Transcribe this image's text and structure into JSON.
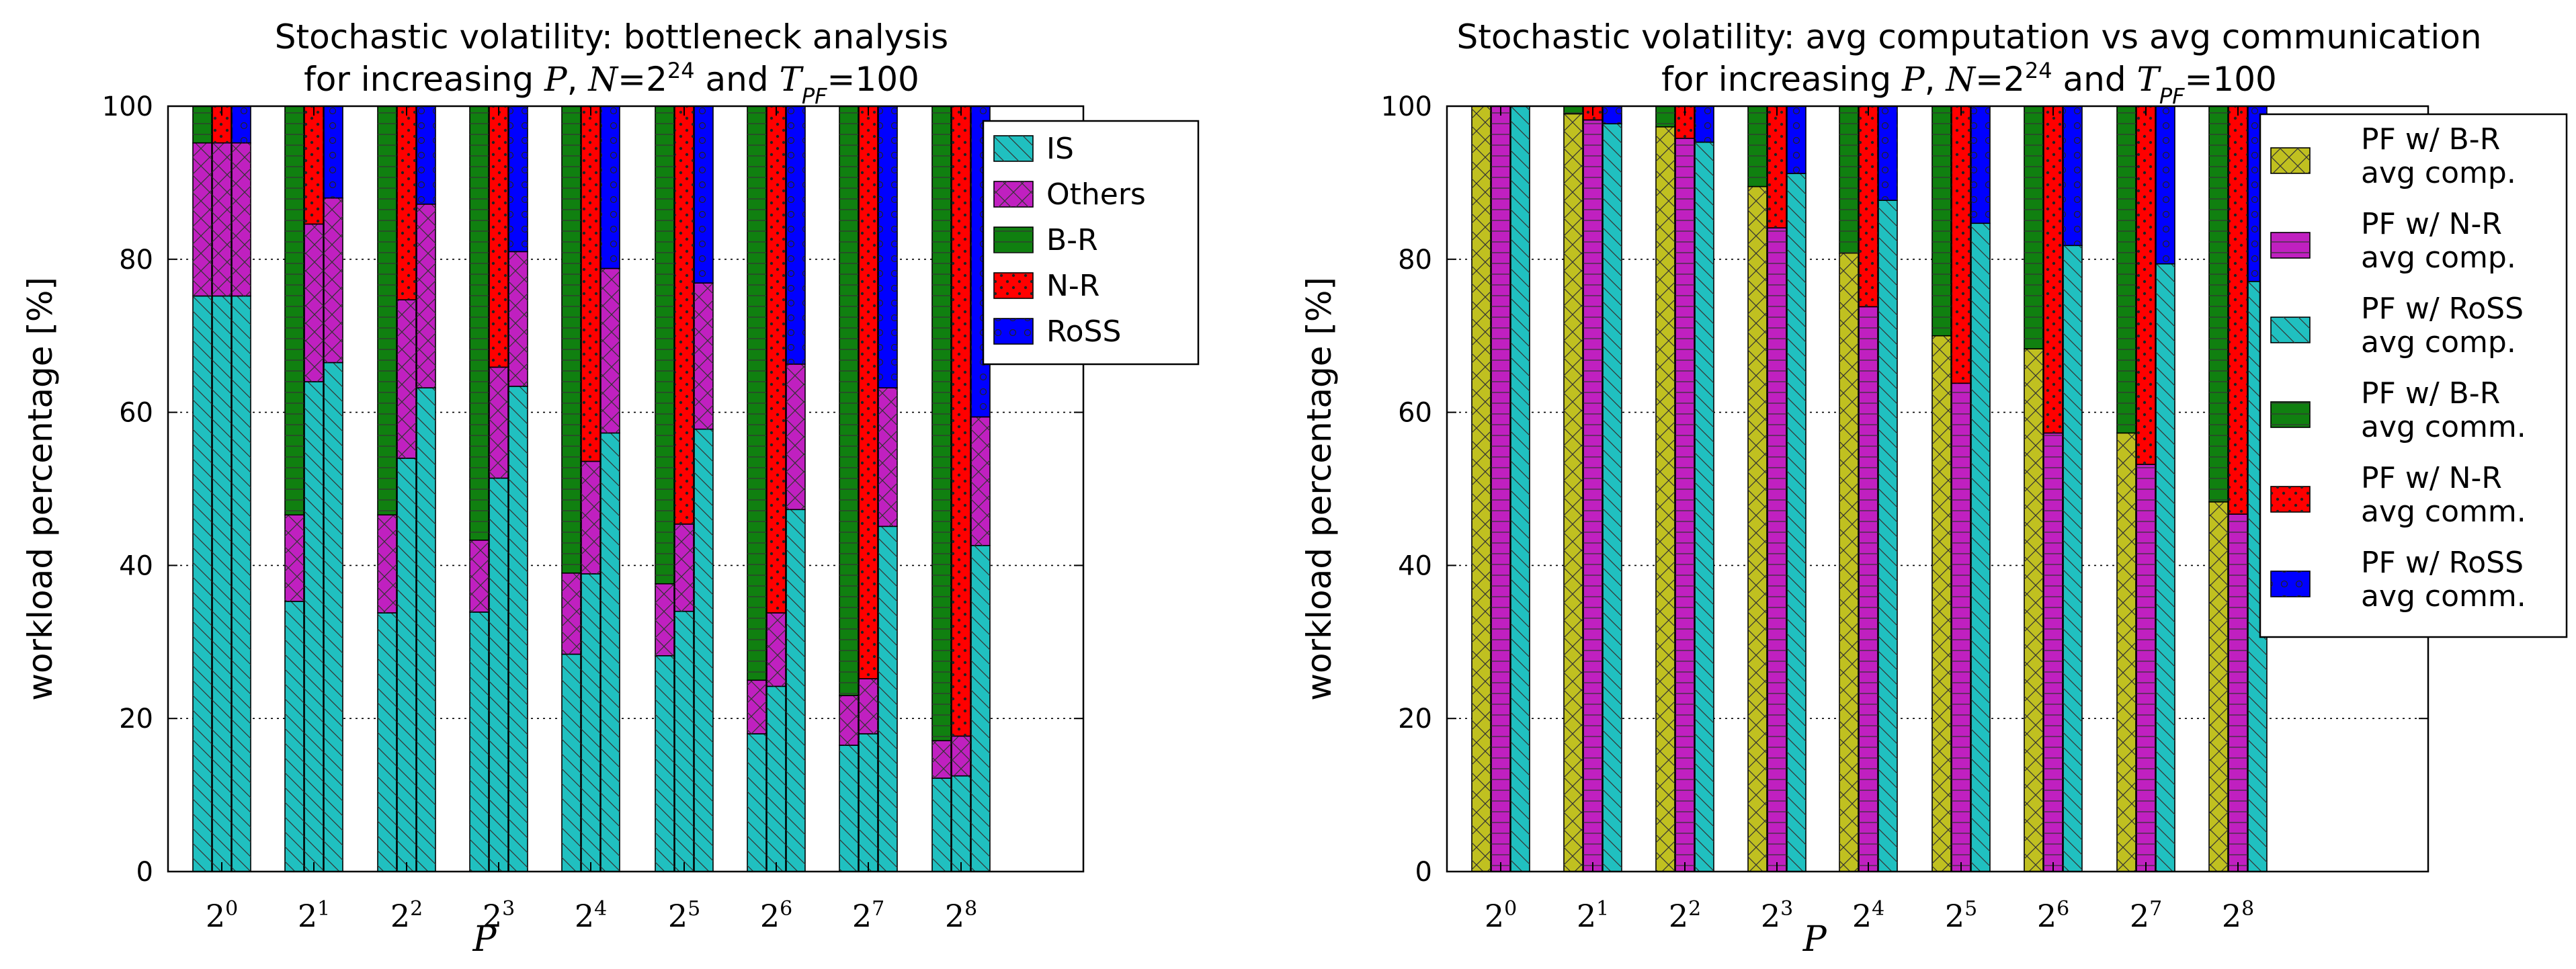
{
  "colors": {
    "IS": "#20c0c0",
    "Others": "#c020c0",
    "B-R": "#108010",
    "N-R": "#ff0000",
    "RoSS": "#0000ff",
    "PF w/ B-R avg comp.": "#c0c020",
    "PF w/ N-R avg comp.": "#c020c0",
    "PF w/ RoSS avg comp.": "#20c0c0",
    "PF w/ B-R avg comm.": "#108010",
    "PF w/ N-R avg comm.": "#ff0000",
    "PF w/ RoSS avg comm.": "#0000ff"
  },
  "chart_data": [
    {
      "type": "bar",
      "stacked": true,
      "title": "Stochastic volatility: bottleneck analysis",
      "subtitle": "for increasing P, N=2^24 and T_PF=100",
      "xlabel": "P",
      "ylabel": "workload percentage [%]",
      "ylim": [
        0,
        100
      ],
      "yticks": [
        "0",
        "20",
        "40",
        "60",
        "80",
        "100"
      ],
      "grid": "horizontal dotted",
      "legend_position": "top-right",
      "categories": [
        "2^0",
        "2^1",
        "2^2",
        "2^3",
        "2^4",
        "2^5",
        "2^6",
        "2^7",
        "2^8"
      ],
      "category_base": [
        "2",
        "2",
        "2",
        "2",
        "2",
        "2",
        "2",
        "2",
        "2"
      ],
      "category_exp": [
        "0",
        "1",
        "2",
        "3",
        "4",
        "5",
        "6",
        "7",
        "8"
      ],
      "legend": [
        "IS",
        "Others",
        "B-R",
        "N-R",
        "RoSS"
      ],
      "groups": [
        "B-R",
        "N-R",
        "RoSS"
      ],
      "segments": {
        "B-R": [
          {
            "IS": 75.2,
            "Others": 20.0,
            "B-R": 4.8
          },
          {
            "IS": 35.3,
            "Others": 11.3,
            "B-R": 53.4
          },
          {
            "IS": 33.8,
            "Others": 12.8,
            "B-R": 53.4
          },
          {
            "IS": 33.9,
            "Others": 9.4,
            "B-R": 56.7
          },
          {
            "IS": 28.4,
            "Others": 10.6,
            "B-R": 61.0
          },
          {
            "IS": 28.2,
            "Others": 9.4,
            "B-R": 62.4
          },
          {
            "IS": 18.0,
            "Others": 7.0,
            "B-R": 75.0
          },
          {
            "IS": 16.5,
            "Others": 6.5,
            "B-R": 77.0
          },
          {
            "IS": 12.2,
            "Others": 4.9,
            "B-R": 82.9
          }
        ],
        "N-R": [
          {
            "IS": 75.2,
            "Others": 20.0,
            "N-R": 4.8
          },
          {
            "IS": 64.0,
            "Others": 20.6,
            "N-R": 15.4
          },
          {
            "IS": 54.0,
            "Others": 20.7,
            "N-R": 25.3
          },
          {
            "IS": 51.4,
            "Others": 14.5,
            "N-R": 34.1
          },
          {
            "IS": 38.9,
            "Others": 14.7,
            "N-R": 46.4
          },
          {
            "IS": 34.0,
            "Others": 11.4,
            "N-R": 54.6
          },
          {
            "IS": 24.2,
            "Others": 9.6,
            "N-R": 66.2
          },
          {
            "IS": 18.0,
            "Others": 7.2,
            "N-R": 74.8
          },
          {
            "IS": 12.5,
            "Others": 5.2,
            "N-R": 82.3
          }
        ],
        "RoSS": [
          {
            "IS": 75.2,
            "Others": 20.0,
            "RoSS": 4.8
          },
          {
            "IS": 66.5,
            "Others": 21.5,
            "RoSS": 12.0
          },
          {
            "IS": 63.2,
            "Others": 24.0,
            "RoSS": 12.8
          },
          {
            "IS": 63.4,
            "Others": 17.6,
            "RoSS": 19.0
          },
          {
            "IS": 57.3,
            "Others": 21.5,
            "RoSS": 21.2
          },
          {
            "IS": 57.8,
            "Others": 19.1,
            "RoSS": 23.1
          },
          {
            "IS": 47.3,
            "Others": 19.0,
            "RoSS": 33.7
          },
          {
            "IS": 45.1,
            "Others": 18.1,
            "RoSS": 36.8
          },
          {
            "IS": 42.6,
            "Others": 16.8,
            "RoSS": 40.6
          }
        ]
      }
    },
    {
      "type": "bar",
      "stacked": true,
      "title": "Stochastic volatility: avg computation vs avg communication",
      "subtitle": "for increasing P, N=2^24 and T_PF=100",
      "xlabel": "P",
      "ylabel": "workload percentage [%]",
      "ylim": [
        0,
        100
      ],
      "yticks": [
        "0",
        "20",
        "40",
        "60",
        "80",
        "100"
      ],
      "grid": "horizontal dotted",
      "legend_position": "top-right",
      "categories": [
        "2^0",
        "2^1",
        "2^2",
        "2^3",
        "2^4",
        "2^5",
        "2^6",
        "2^7",
        "2^8"
      ],
      "category_base": [
        "2",
        "2",
        "2",
        "2",
        "2",
        "2",
        "2",
        "2",
        "2"
      ],
      "category_exp": [
        "0",
        "1",
        "2",
        "3",
        "4",
        "5",
        "6",
        "7",
        "8"
      ],
      "legend": [
        "PF w/ B-R avg comp.",
        "PF w/ N-R avg comp.",
        "PF w/ RoSS avg comp.",
        "PF w/ B-R avg comm.",
        "PF w/ N-R avg comm.",
        "PF w/ RoSS avg comm."
      ],
      "legend_lines": [
        [
          "PF w/ B-R",
          "avg comp."
        ],
        [
          "PF w/ N-R",
          "avg comp."
        ],
        [
          "PF w/ RoSS",
          "avg comp."
        ],
        [
          "PF w/ B-R",
          "avg comm."
        ],
        [
          "PF w/ N-R",
          "avg comm."
        ],
        [
          "PF w/ RoSS",
          "avg comm."
        ]
      ],
      "groups": [
        "B-R",
        "N-R",
        "RoSS"
      ],
      "segments": {
        "B-R": [
          {
            "PF w/ B-R avg comp.": 100.0,
            "PF w/ B-R avg comm.": 0.0
          },
          {
            "PF w/ B-R avg comp.": 99.0,
            "PF w/ B-R avg comm.": 1.0
          },
          {
            "PF w/ B-R avg comp.": 97.3,
            "PF w/ B-R avg comm.": 2.7
          },
          {
            "PF w/ B-R avg comp.": 89.5,
            "PF w/ B-R avg comm.": 10.5
          },
          {
            "PF w/ B-R avg comp.": 80.8,
            "PF w/ B-R avg comm.": 19.2
          },
          {
            "PF w/ B-R avg comp.": 70.0,
            "PF w/ B-R avg comm.": 30.0
          },
          {
            "PF w/ B-R avg comp.": 68.3,
            "PF w/ B-R avg comm.": 31.7
          },
          {
            "PF w/ B-R avg comp.": 57.3,
            "PF w/ B-R avg comm.": 42.7
          },
          {
            "PF w/ B-R avg comp.": 48.3,
            "PF w/ B-R avg comm.": 51.7
          }
        ],
        "N-R": [
          {
            "PF w/ N-R avg comp.": 100.0,
            "PF w/ N-R avg comm.": 0.0
          },
          {
            "PF w/ N-R avg comp.": 98.2,
            "PF w/ N-R avg comm.": 1.8
          },
          {
            "PF w/ N-R avg comp.": 95.8,
            "PF w/ N-R avg comm.": 4.2
          },
          {
            "PF w/ N-R avg comp.": 84.1,
            "PF w/ N-R avg comm.": 15.9
          },
          {
            "PF w/ N-R avg comp.": 73.8,
            "PF w/ N-R avg comm.": 26.2
          },
          {
            "PF w/ N-R avg comp.": 63.8,
            "PF w/ N-R avg comm.": 36.2
          },
          {
            "PF w/ N-R avg comp.": 57.3,
            "PF w/ N-R avg comm.": 42.7
          },
          {
            "PF w/ N-R avg comp.": 53.2,
            "PF w/ N-R avg comm.": 46.8
          },
          {
            "PF w/ N-R avg comp.": 46.7,
            "PF w/ N-R avg comm.": 53.3
          }
        ],
        "RoSS": [
          {
            "PF w/ RoSS avg comp.": 100.0,
            "PF w/ RoSS avg comm.": 0.0
          },
          {
            "PF w/ RoSS avg comp.": 97.7,
            "PF w/ RoSS avg comm.": 2.3
          },
          {
            "PF w/ RoSS avg comp.": 95.3,
            "PF w/ RoSS avg comm.": 4.7
          },
          {
            "PF w/ RoSS avg comp.": 91.2,
            "PF w/ RoSS avg comm.": 8.8
          },
          {
            "PF w/ RoSS avg comp.": 87.7,
            "PF w/ RoSS avg comm.": 12.3
          },
          {
            "PF w/ RoSS avg comp.": 84.7,
            "PF w/ RoSS avg comm.": 15.3
          },
          {
            "PF w/ RoSS avg comp.": 81.8,
            "PF w/ RoSS avg comm.": 18.2
          },
          {
            "PF w/ RoSS avg comp.": 79.4,
            "PF w/ RoSS avg comm.": 20.6
          },
          {
            "PF w/ RoSS avg comp.": 77.1,
            "PF w/ RoSS avg comm.": 22.9
          }
        ]
      }
    }
  ]
}
